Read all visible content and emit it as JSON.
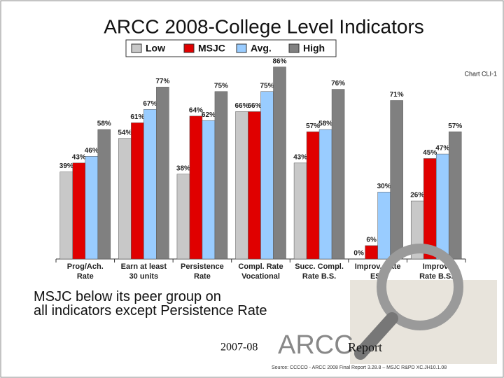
{
  "chart_data": {
    "type": "bar",
    "title": "ARCC 2008-College Level Indicators",
    "subtitle": "Chart CLI-1",
    "categories": [
      [
        "Prog/Ach.",
        "Rate"
      ],
      [
        "Earn at least",
        "30 units"
      ],
      [
        "Persistence",
        "Rate"
      ],
      [
        "Compl. Rate",
        "Vocational"
      ],
      [
        "Succ. Compl.",
        "Rate B.S."
      ],
      [
        "Improv. Rate",
        "ESL"
      ],
      [
        "Improv.",
        "Rate B.S."
      ]
    ],
    "series": [
      {
        "name": "Low",
        "color": "#c8c8c8",
        "values": [
          39,
          54,
          38,
          66,
          43,
          0,
          26
        ],
        "value_labels": [
          "39%",
          "54%",
          "38%",
          "66%",
          "43%",
          "0%",
          "26%"
        ]
      },
      {
        "name": "MSJC",
        "color": "#e00000",
        "values": [
          43,
          61,
          64,
          66,
          57,
          6,
          45
        ],
        "value_labels": [
          "43%",
          "61%",
          "64%",
          "66%",
          "57%",
          "6%",
          "45%"
        ]
      },
      {
        "name": "Avg.",
        "color": "#99ccff",
        "values": [
          46,
          67,
          62,
          75,
          58,
          30,
          47
        ],
        "value_labels": [
          "46%",
          "67%",
          "62%",
          "75%",
          "58%",
          "30%",
          "47%"
        ]
      },
      {
        "name": "High",
        "color": "#808080",
        "values": [
          58,
          77,
          75,
          86,
          76,
          71,
          57
        ],
        "value_labels": [
          "58%",
          "77%",
          "75%",
          "86%",
          "76%",
          "71%",
          "57%"
        ]
      }
    ],
    "ylim": [
      0,
      100
    ],
    "legend": "top",
    "annotations": [
      "MSJC below its peer group on all indicators except Persistence Rate"
    ]
  },
  "footer": {
    "year": "2007-08",
    "brand": "ARCC",
    "word": "Report",
    "source": "Source: CCCCO - ARCC 2008 Final Report 3.28.8 – MSJC R&PD XC.JH10.1.08"
  }
}
